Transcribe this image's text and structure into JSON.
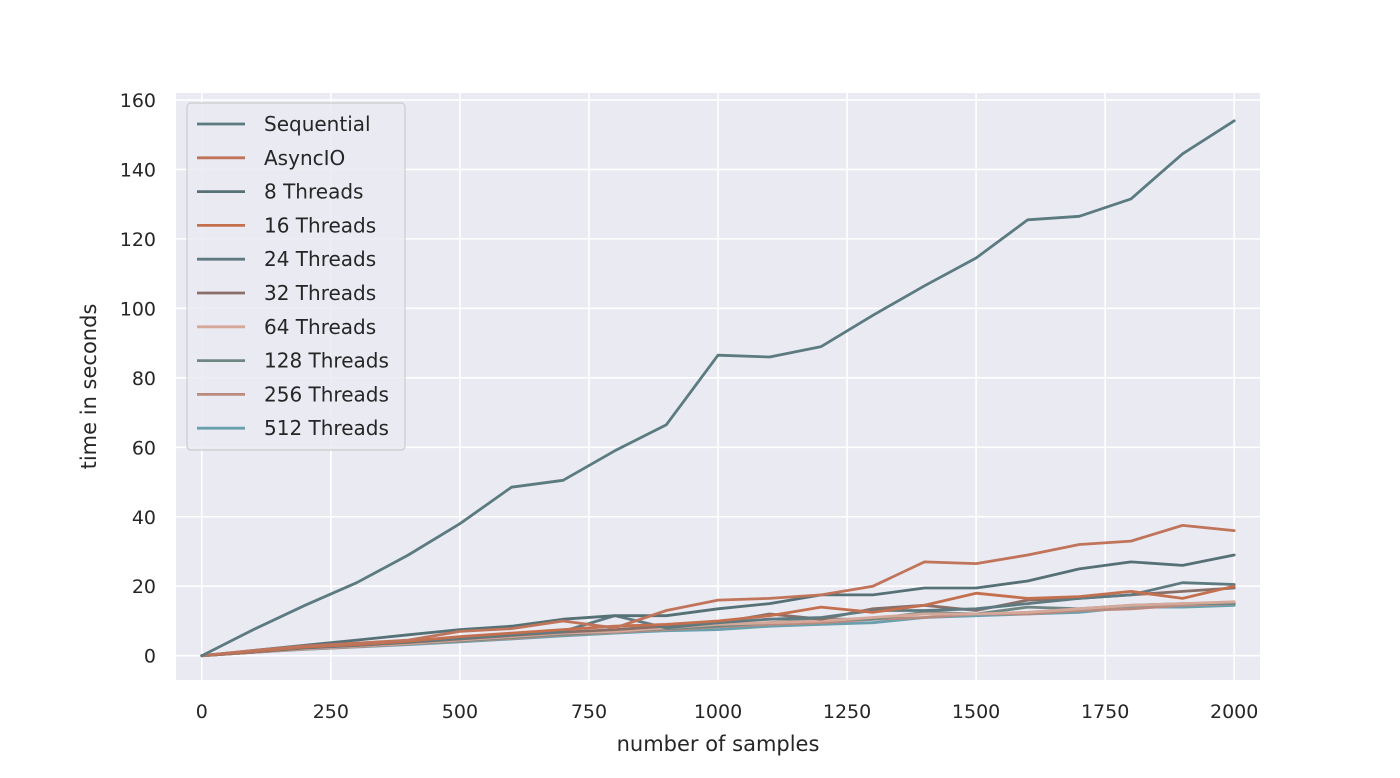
{
  "chart_data": {
    "type": "line",
    "title": "",
    "xlabel": "number of samples",
    "ylabel": "time in seconds",
    "xlim": [
      -50,
      2050
    ],
    "ylim": [
      -7,
      162
    ],
    "x_ticks": [
      0,
      250,
      500,
      750,
      1000,
      1250,
      1500,
      1750,
      2000
    ],
    "y_ticks": [
      0,
      20,
      40,
      60,
      80,
      100,
      120,
      140,
      160
    ],
    "grid": true,
    "legend_position": "upper-left",
    "background": "#eaeaf2",
    "grid_color": "#ffffff",
    "x": [
      0,
      100,
      200,
      300,
      400,
      500,
      600,
      700,
      800,
      900,
      1000,
      1100,
      1200,
      1300,
      1400,
      1500,
      1600,
      1700,
      1800,
      1900,
      2000
    ],
    "series": [
      {
        "name": "Sequential",
        "color": "#5b7b81",
        "width": 2.8,
        "values": [
          0,
          7.5,
          14.5,
          21,
          29,
          38,
          48.5,
          50.5,
          59,
          66.5,
          86.5,
          86,
          89,
          98,
          106.5,
          114.5,
          125.5,
          126.5,
          131.5,
          144.5,
          154
        ]
      },
      {
        "name": "AsyncIO",
        "color": "#c0745a",
        "width": 2.8,
        "values": [
          0,
          1.5,
          2.8,
          3.6,
          4.5,
          7,
          7.8,
          10,
          8,
          13,
          16,
          16.5,
          17.5,
          20,
          27,
          26.5,
          29,
          32,
          33,
          37.5,
          36
        ]
      },
      {
        "name": "8 Threads",
        "color": "#557175",
        "width": 2.8,
        "values": [
          0,
          1.5,
          3,
          4.5,
          6,
          7.5,
          8.5,
          10.5,
          11.5,
          11.5,
          13.5,
          15,
          17.5,
          17.5,
          19.5,
          19.5,
          21.5,
          25,
          27,
          26,
          29
        ]
      },
      {
        "name": "16 Threads",
        "color": "#c4704f",
        "width": 2.8,
        "values": [
          0,
          1.2,
          2.5,
          3.2,
          4.2,
          5.5,
          6.5,
          7.5,
          8.5,
          9,
          10,
          11.5,
          14,
          12.5,
          14.5,
          18,
          16.5,
          17,
          18.5,
          16.5,
          20
        ]
      },
      {
        "name": "24 Threads",
        "color": "#5e7a80",
        "width": 2.8,
        "values": [
          0,
          1.2,
          2.3,
          3,
          4,
          5,
          6,
          7,
          11.5,
          8,
          9.5,
          10.5,
          11,
          13,
          13,
          13.5,
          15,
          16.5,
          17.5,
          21,
          20.5
        ]
      },
      {
        "name": "32 Threads",
        "color": "#8a6f68",
        "width": 2.8,
        "values": [
          0,
          1,
          2.2,
          3,
          3.8,
          4.8,
          5.8,
          6.8,
          7.5,
          8.5,
          9.5,
          12,
          10.5,
          13.5,
          14.5,
          13,
          16,
          16.5,
          17.5,
          18.5,
          19.5
        ]
      },
      {
        "name": "64 Threads",
        "color": "#d5a89a",
        "width": 2.8,
        "values": [
          0,
          1,
          2,
          2.8,
          3.5,
          4.5,
          5.5,
          6.5,
          7,
          8,
          9,
          9.5,
          10,
          11,
          12,
          12,
          12.5,
          13.5,
          14.5,
          15,
          15.5
        ]
      },
      {
        "name": "128 Threads",
        "color": "#6f8783",
        "width": 2.8,
        "values": [
          0,
          1,
          2,
          2.8,
          3.5,
          4.3,
          5.3,
          6.2,
          7,
          7.8,
          8.5,
          9.5,
          10.5,
          10.5,
          12.5,
          12,
          14,
          13.5,
          14.5,
          15,
          15
        ]
      },
      {
        "name": "256 Threads",
        "color": "#b98b7f",
        "width": 2.8,
        "values": [
          0,
          1,
          1.9,
          2.6,
          3.4,
          4.2,
          5,
          6,
          6.8,
          7.5,
          8.3,
          9,
          9.5,
          10.5,
          11,
          12,
          12,
          13,
          13.5,
          14.5,
          15
        ]
      },
      {
        "name": "512 Threads",
        "color": "#6a9fae",
        "width": 2.8,
        "values": [
          0,
          1,
          1.8,
          2.5,
          3.2,
          4,
          4.8,
          5.7,
          6.5,
          7.2,
          7.5,
          8.5,
          9,
          9.5,
          11,
          11.5,
          12,
          12.5,
          14,
          14,
          14.5
        ]
      }
    ]
  }
}
